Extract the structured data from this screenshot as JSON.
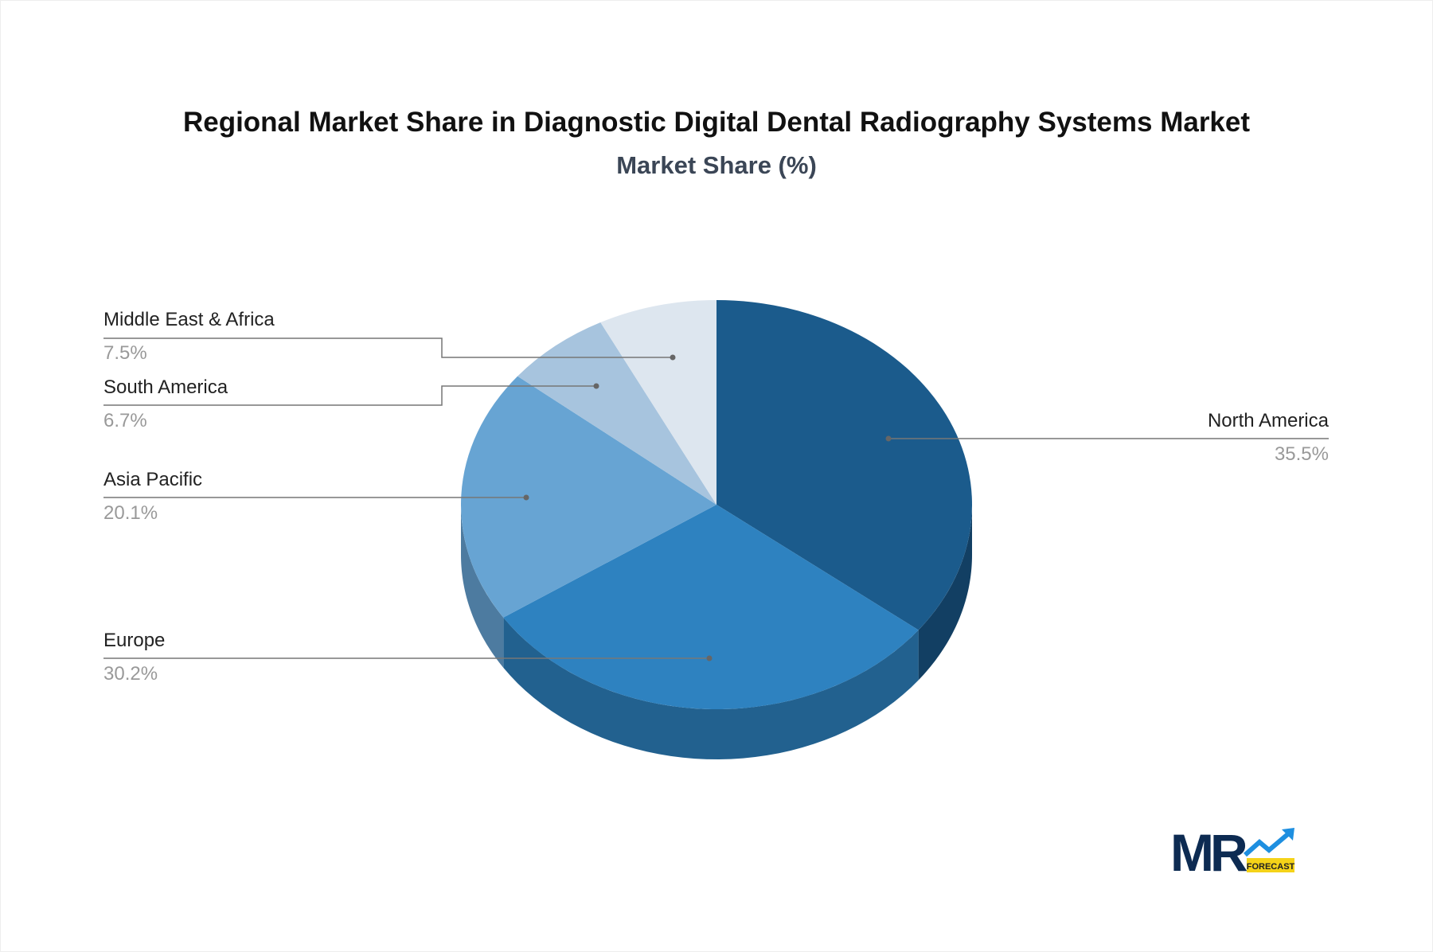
{
  "chart_data": {
    "type": "pie",
    "style": "3d",
    "title": "Regional Market Share in Diagnostic Digital Dental Radiography Systems Market",
    "subtitle": "Market Share (%)",
    "categories": [
      "North America",
      "Europe",
      "Asia Pacific",
      "South America",
      "Middle East & Africa"
    ],
    "values": [
      35.5,
      30.2,
      20.1,
      6.7,
      7.5
    ],
    "value_labels": [
      "35.5%",
      "30.2%",
      "20.1%",
      "6.7%",
      "7.5%"
    ],
    "colors": [
      "#1b5b8c",
      "#2e82c0",
      "#67a4d3",
      "#a7c4de",
      "#dde6ef"
    ],
    "side_colors": [
      "#123f63",
      "#22618f",
      "#4d7ba0",
      "#7f97ad",
      "#a9b3bd"
    ]
  },
  "logo": {
    "text": "MR",
    "badge": "FORECAST"
  }
}
